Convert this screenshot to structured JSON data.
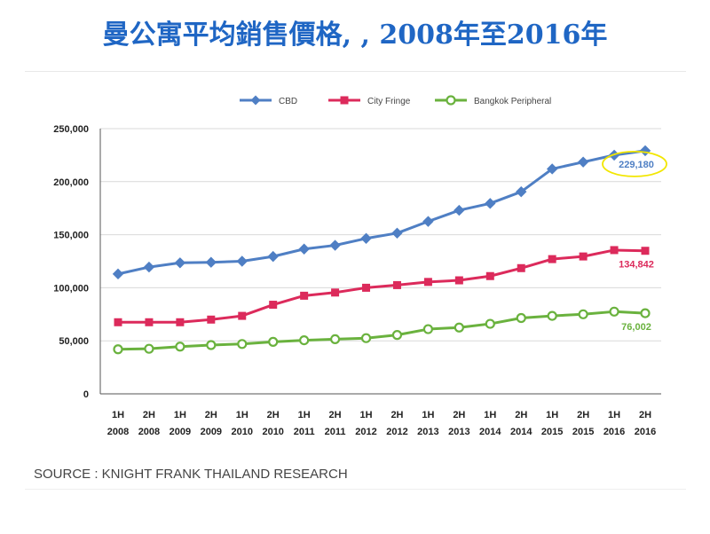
{
  "page": {
    "title": "曼公寓平均銷售價格, , 2008年至2016年",
    "source": "SOURCE : KNIGHT FRANK THAILAND RESEARCH"
  },
  "chart_data": {
    "type": "line",
    "title": "",
    "xlabel": "",
    "ylabel": "",
    "categories": [
      [
        "1H",
        "2008"
      ],
      [
        "2H",
        "2008"
      ],
      [
        "1H",
        "2009"
      ],
      [
        "2H",
        "2009"
      ],
      [
        "1H",
        "2010"
      ],
      [
        "2H",
        "2010"
      ],
      [
        "1H",
        "2011"
      ],
      [
        "2H",
        "2011"
      ],
      [
        "1H",
        "2012"
      ],
      [
        "2H",
        "2012"
      ],
      [
        "1H",
        "2013"
      ],
      [
        "2H",
        "2013"
      ],
      [
        "1H",
        "2014"
      ],
      [
        "2H",
        "2014"
      ],
      [
        "1H",
        "2015"
      ],
      [
        "2H",
        "2015"
      ],
      [
        "1H",
        "2016"
      ],
      [
        "2H",
        "2016"
      ]
    ],
    "ylim": [
      0,
      250000
    ],
    "yticks": [
      "0",
      "50,000",
      "100,000",
      "150,000",
      "200,000",
      "250,000"
    ],
    "grid": "horizontal",
    "legend_position": "top",
    "series": [
      {
        "name": "CBD",
        "color": "#4f7fc4",
        "marker": "diamond",
        "values": [
          113000,
          119500,
          123500,
          124000,
          125000,
          129500,
          136500,
          140000,
          146500,
          151500,
          162500,
          173000,
          179500,
          190500,
          212000,
          218500,
          225000,
          229180
        ],
        "end_label": "229,180",
        "end_label_color": "#4f7fc4",
        "highlight": "yellow-ellipse"
      },
      {
        "name": "City Fringe",
        "color": "#dc2a5b",
        "marker": "square",
        "values": [
          67500,
          67500,
          67500,
          70000,
          73500,
          84000,
          92500,
          95500,
          100000,
          102500,
          105500,
          107000,
          111000,
          118500,
          127000,
          129500,
          135500,
          134842
        ],
        "end_label": "134,842",
        "end_label_color": "#dc2a5b"
      },
      {
        "name": "Bangkok Peripheral",
        "color": "#6ab23e",
        "marker": "circle",
        "values": [
          42000,
          42500,
          44500,
          46000,
          47000,
          49000,
          50500,
          51500,
          52500,
          55500,
          61000,
          62500,
          66000,
          71500,
          73500,
          75000,
          77500,
          76002
        ],
        "end_label": "76,002",
        "end_label_color": "#6ab23e"
      }
    ]
  }
}
